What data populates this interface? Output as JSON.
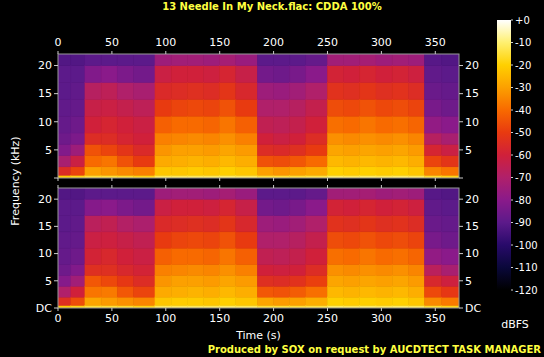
{
  "chart_data": {
    "type": "heatmap",
    "title": "13 Needle In My Neck.flac: CDDA 100%",
    "annotations": [
      "Produced by SOX on request by AUCDTECT TASK MANAGER"
    ],
    "x_label": "Time (s)",
    "y_label": "Frequency (kHz)",
    "x_bins": [
      0,
      12,
      25,
      40,
      55,
      70,
      90,
      105,
      120,
      135,
      150,
      165,
      185,
      200,
      215,
      230,
      250,
      265,
      280,
      295,
      310,
      325,
      340,
      356,
      372
    ],
    "y_bins": [
      0,
      0.5,
      2,
      4,
      6,
      8,
      11,
      14,
      17,
      20,
      22.05
    ],
    "xlim": [
      0,
      372
    ],
    "xticks": [
      0,
      50,
      100,
      150,
      200,
      250,
      300,
      350
    ],
    "ylim": [
      0,
      22.05
    ],
    "yticks": [
      {
        "value": 0,
        "label": "DC"
      },
      5,
      10,
      15,
      20
    ],
    "panels": [
      {
        "cells": [
          [
            -20,
            -55,
            -72,
            -82,
            -86,
            -88,
            -89,
            -90,
            -90,
            -92
          ],
          [
            -18,
            -48,
            -62,
            -75,
            -83,
            -86,
            -88,
            -89,
            -90,
            -92
          ],
          [
            -15,
            -30,
            -40,
            -45,
            -55,
            -60,
            -63,
            -68,
            -82,
            -90
          ],
          [
            -15,
            -32,
            -38,
            -48,
            -55,
            -58,
            -62,
            -66,
            -80,
            -90
          ],
          [
            -16,
            -34,
            -45,
            -52,
            -58,
            -60,
            -64,
            -70,
            -83,
            -90
          ],
          [
            -18,
            -36,
            -50,
            -56,
            -60,
            -62,
            -66,
            -72,
            -85,
            -90
          ],
          [
            -12,
            -22,
            -28,
            -32,
            -36,
            -42,
            -50,
            -56,
            -62,
            -75
          ],
          [
            -12,
            -22,
            -27,
            -30,
            -35,
            -40,
            -48,
            -55,
            -60,
            -74
          ],
          [
            -12,
            -21,
            -26,
            -30,
            -34,
            -40,
            -47,
            -54,
            -60,
            -74
          ],
          [
            -12,
            -22,
            -27,
            -31,
            -35,
            -41,
            -48,
            -55,
            -61,
            -75
          ],
          [
            -11,
            -20,
            -25,
            -29,
            -33,
            -38,
            -45,
            -52,
            -58,
            -73
          ],
          [
            -12,
            -22,
            -27,
            -31,
            -36,
            -42,
            -50,
            -57,
            -63,
            -76
          ],
          [
            -15,
            -30,
            -45,
            -55,
            -60,
            -65,
            -70,
            -75,
            -85,
            -90
          ],
          [
            -15,
            -32,
            -46,
            -56,
            -62,
            -66,
            -70,
            -76,
            -86,
            -90
          ],
          [
            -15,
            -30,
            -44,
            -54,
            -60,
            -64,
            -68,
            -74,
            -84,
            -90
          ],
          [
            -14,
            -28,
            -40,
            -50,
            -55,
            -60,
            -64,
            -70,
            -80,
            -88
          ],
          [
            -11,
            -20,
            -25,
            -29,
            -33,
            -39,
            -46,
            -53,
            -59,
            -74
          ],
          [
            -12,
            -21,
            -26,
            -30,
            -34,
            -40,
            -47,
            -54,
            -60,
            -74
          ],
          [
            -11,
            -20,
            -25,
            -29,
            -33,
            -38,
            -45,
            -52,
            -58,
            -73
          ],
          [
            -12,
            -21,
            -26,
            -30,
            -34,
            -40,
            -47,
            -54,
            -60,
            -75
          ],
          [
            -11,
            -20,
            -25,
            -29,
            -33,
            -39,
            -46,
            -53,
            -59,
            -74
          ],
          [
            -12,
            -22,
            -27,
            -31,
            -35,
            -41,
            -48,
            -55,
            -61,
            -75
          ],
          [
            -16,
            -35,
            -48,
            -58,
            -68,
            -78,
            -84,
            -87,
            -89,
            -91
          ],
          [
            -18,
            -38,
            -52,
            -62,
            -72,
            -80,
            -86,
            -88,
            -90,
            -92
          ]
        ]
      },
      {
        "cells": [
          [
            -20,
            -54,
            -70,
            -81,
            -86,
            -88,
            -89,
            -90,
            -90,
            -92
          ],
          [
            -18,
            -46,
            -60,
            -74,
            -82,
            -86,
            -88,
            -89,
            -90,
            -92
          ],
          [
            -15,
            -29,
            -38,
            -44,
            -54,
            -59,
            -62,
            -67,
            -81,
            -90
          ],
          [
            -15,
            -31,
            -37,
            -47,
            -54,
            -57,
            -61,
            -65,
            -80,
            -90
          ],
          [
            -16,
            -33,
            -44,
            -51,
            -57,
            -60,
            -63,
            -69,
            -83,
            -90
          ],
          [
            -18,
            -35,
            -48,
            -55,
            -59,
            -62,
            -65,
            -71,
            -85,
            -90
          ],
          [
            -12,
            -22,
            -28,
            -32,
            -36,
            -42,
            -50,
            -56,
            -62,
            -75
          ],
          [
            -12,
            -21,
            -27,
            -30,
            -35,
            -40,
            -48,
            -55,
            -60,
            -74
          ],
          [
            -12,
            -21,
            -26,
            -30,
            -34,
            -40,
            -47,
            -54,
            -60,
            -74
          ],
          [
            -12,
            -22,
            -27,
            -31,
            -35,
            -41,
            -48,
            -55,
            -61,
            -75
          ],
          [
            -11,
            -20,
            -25,
            -29,
            -33,
            -38,
            -45,
            -52,
            -58,
            -73
          ],
          [
            -12,
            -22,
            -27,
            -31,
            -36,
            -42,
            -50,
            -57,
            -63,
            -76
          ],
          [
            -15,
            -29,
            -44,
            -54,
            -60,
            -65,
            -70,
            -75,
            -85,
            -90
          ],
          [
            -15,
            -31,
            -45,
            -55,
            -61,
            -66,
            -70,
            -76,
            -86,
            -90
          ],
          [
            -15,
            -30,
            -43,
            -53,
            -60,
            -64,
            -68,
            -74,
            -84,
            -90
          ],
          [
            -14,
            -27,
            -39,
            -49,
            -55,
            -60,
            -64,
            -70,
            -80,
            -88
          ],
          [
            -11,
            -20,
            -25,
            -29,
            -33,
            -39,
            -46,
            -53,
            -59,
            -74
          ],
          [
            -12,
            -21,
            -26,
            -30,
            -34,
            -40,
            -47,
            -54,
            -60,
            -74
          ],
          [
            -11,
            -20,
            -25,
            -29,
            -33,
            -38,
            -45,
            -52,
            -58,
            -73
          ],
          [
            -12,
            -21,
            -26,
            -30,
            -34,
            -40,
            -47,
            -54,
            -60,
            -75
          ],
          [
            -11,
            -20,
            -25,
            -29,
            -33,
            -39,
            -46,
            -53,
            -59,
            -74
          ],
          [
            -12,
            -22,
            -27,
            -31,
            -35,
            -41,
            -48,
            -55,
            -61,
            -75
          ],
          [
            -16,
            -34,
            -47,
            -57,
            -67,
            -78,
            -84,
            -87,
            -89,
            -91
          ],
          [
            -18,
            -37,
            -51,
            -61,
            -72,
            -80,
            -86,
            -88,
            -90,
            -92
          ]
        ]
      }
    ],
    "colorbar": {
      "label": "dBFS",
      "range": [
        -120,
        0
      ],
      "ticks": [
        {
          "value": 0,
          "label": "+0"
        },
        -10,
        -20,
        -30,
        -40,
        -50,
        -60,
        -70,
        -80,
        -90,
        -100,
        -110,
        -120
      ]
    }
  }
}
